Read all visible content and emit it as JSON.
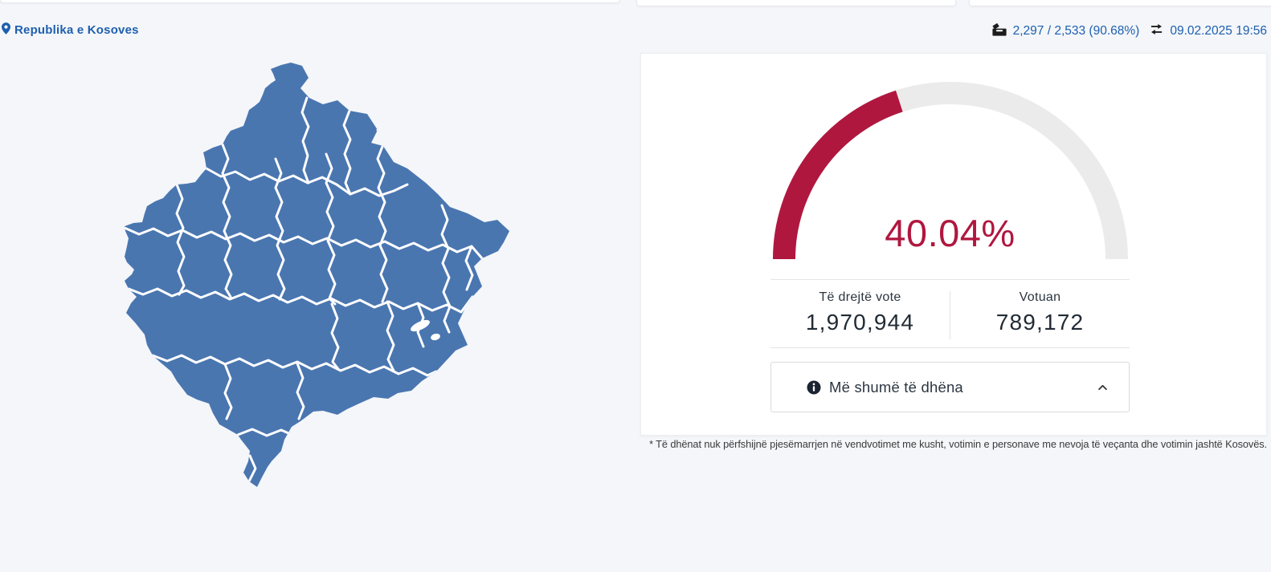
{
  "page": {
    "background": "#f4f6fa",
    "accent_blue": "#1e5fae",
    "map_blue": "#4a76b0",
    "gauge_red": "#b0173f",
    "gauge_track": "#ebebeb",
    "text_dark": "#2b3540"
  },
  "header": {
    "title": "Republika e Kosoves"
  },
  "statusbar": {
    "polling_stations": "2,297 / 2,533 (90.68%)",
    "last_updated": "09.02.2025 19:56"
  },
  "gauge_card": {
    "percent": 40.04,
    "percent_label": "40.04%",
    "stats": {
      "left": {
        "label": "Të drejtë vote",
        "value": "1,970,944"
      },
      "right": {
        "label": "Votuan",
        "value": "789,172"
      }
    },
    "more_data_label": "Më shumë të dhëna"
  },
  "chart_data": {
    "type": "gauge",
    "value": 40.04,
    "max": 100,
    "label": "40.04%",
    "filled_color": "#b0173f",
    "track_color": "#ebebeb"
  },
  "footnote": "* Të dhënat nuk përfshijnë pjesëmarrjen në vendvotimet me kusht, votimin e personave me nevoja të veçanta dhe votimin jashtë Kosovës."
}
